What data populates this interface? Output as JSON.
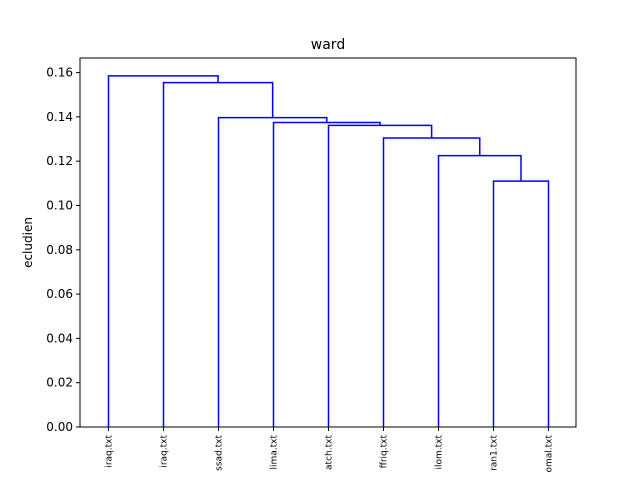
{
  "chart_data": {
    "type": "dendrogram",
    "title": "ward",
    "xlabel": "",
    "ylabel": "ecludien",
    "ylim": [
      0,
      0.16
    ],
    "yticks": [
      "0.00",
      "0.02",
      "0.04",
      "0.06",
      "0.08",
      "0.10",
      "0.12",
      "0.14",
      "0.16"
    ],
    "ytick_values": [
      0,
      0.02,
      0.04,
      0.06,
      0.08,
      0.1,
      0.12,
      0.14,
      0.16
    ],
    "leaves": [
      "iraq.txt",
      "iraq.txt",
      "ssad.txt",
      "lima.txt",
      "atch.txt",
      "ffriq.txt",
      "ilom.txt",
      "ran1.txt",
      "omal.txt"
    ],
    "link_color": "#0000ff",
    "merges": [
      {
        "left": 7,
        "right": 8,
        "height": 0.111
      },
      {
        "left": 6,
        "right": 7.5,
        "height": 0.1225
      },
      {
        "left": 5,
        "right": 6.75,
        "height": 0.1305
      },
      {
        "left": 4,
        "right": 5.875,
        "height": 0.1362
      },
      {
        "left": 3,
        "right": 4.9375,
        "height": 0.1375
      },
      {
        "left": 2,
        "right": 3.96875,
        "height": 0.1397
      },
      {
        "left": 1,
        "right": 2.984375,
        "height": 0.1555
      },
      {
        "left": 0,
        "right": 1.9921875,
        "height": 0.1585
      }
    ]
  }
}
